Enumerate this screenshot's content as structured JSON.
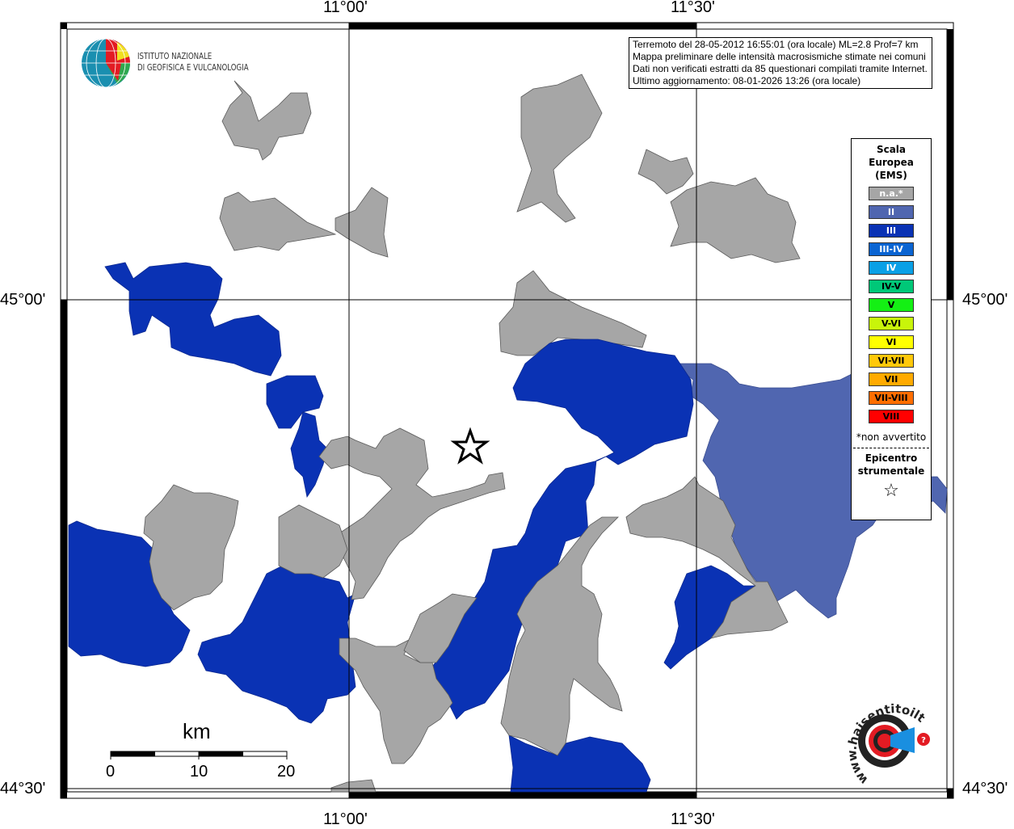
{
  "map": {
    "lon_labels": [
      "11°00'",
      "11°30'"
    ],
    "lat_labels": [
      "45°00'",
      "44°30'"
    ],
    "epicenter_icon": "star-icon"
  },
  "info_box": {
    "lines": [
      "Terremoto del 28-05-2012 16:55:01 (ora locale) ML=2.8 Prof=7 km",
      "Mappa preliminare delle intensità macrosismiche stimate nei comuni",
      "Dati non verificati estratti da 85 questionari compilati tramite Internet.",
      "Ultimo aggiornamento: 08-01-2026 13:26 (ora locale)"
    ]
  },
  "logo_ingv": {
    "line1": "ISTITUTO NAZIONALE",
    "line2": "DI GEOFISICA E VULCANOLOGIA"
  },
  "logo_hsit": {
    "text": "www.haisentitoilterremoto.it"
  },
  "legend": {
    "title_lines": [
      "Scala",
      "Europea",
      "(EMS)"
    ],
    "classes": [
      {
        "label": "n.a.*",
        "color": "#a6a6a6",
        "text_color": "#ffffff"
      },
      {
        "label": "II",
        "color": "#5066b0",
        "text_color": "#ffffff"
      },
      {
        "label": "III",
        "color": "#0a32b4",
        "text_color": "#ffffff"
      },
      {
        "label": "III-IV",
        "color": "#0a64d2",
        "text_color": "#ffffff"
      },
      {
        "label": "IV",
        "color": "#0aa0e6",
        "text_color": "#ffffff"
      },
      {
        "label": "IV-V",
        "color": "#00c878",
        "text_color": "#000000"
      },
      {
        "label": "V",
        "color": "#14f014",
        "text_color": "#000000"
      },
      {
        "label": "V-VI",
        "color": "#c8f50a",
        "text_color": "#000000"
      },
      {
        "label": "VI",
        "color": "#ffff00",
        "text_color": "#000000"
      },
      {
        "label": "VI-VII",
        "color": "#ffc80a",
        "text_color": "#000000"
      },
      {
        "label": "VII",
        "color": "#ffaa00",
        "text_color": "#000000"
      },
      {
        "label": "VII-VIII",
        "color": "#ff6e00",
        "text_color": "#000000"
      },
      {
        "label": "VIII",
        "color": "#ff0000",
        "text_color": "#000000"
      }
    ],
    "note": "*non avvertito",
    "epicenter_lines": [
      "Epicentro",
      "strumentale"
    ],
    "epicenter_symbol": "☆"
  },
  "scale_bar": {
    "unit": "km",
    "ticks": [
      "0",
      "10",
      "20"
    ]
  }
}
